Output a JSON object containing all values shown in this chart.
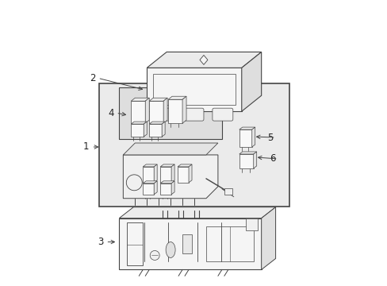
{
  "background_color": "#ffffff",
  "line_color": "#444444",
  "gray_fill": "#e8e8e8",
  "white_fill": "#ffffff",
  "figsize": [
    4.89,
    3.6
  ],
  "dpi": 100,
  "label_color": "#222222",
  "label_fontsize": 8.5
}
